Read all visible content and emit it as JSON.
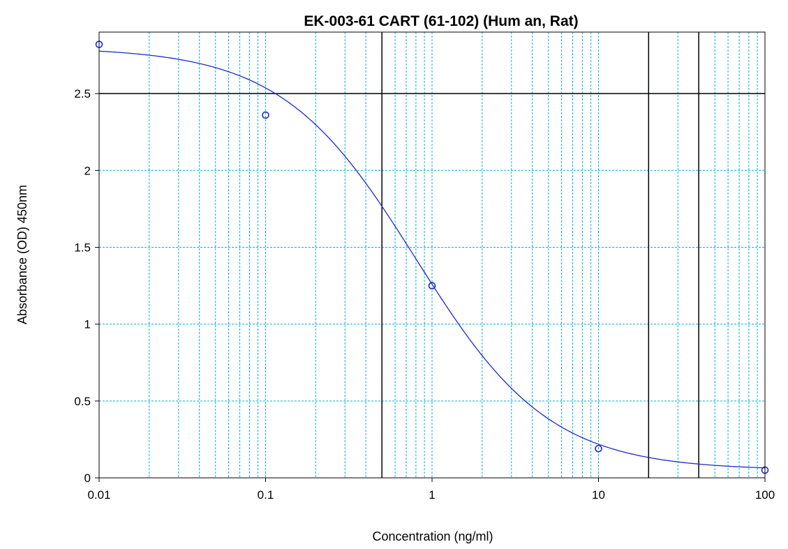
{
  "colors": {
    "background": "#ffffff",
    "frame": "#000000",
    "grid": "#00b4d8",
    "curve": "#1f28c8",
    "points": "#1f28c8",
    "reference_lines": "#000000"
  },
  "chart_data": {
    "type": "scatter",
    "title": "EK-003-61 CART (61-102) (Hum an, Rat)",
    "xlabel": "Concentration (ng/ml)",
    "ylabel": "Absorbance (OD) 450nm",
    "x_scale": "log",
    "xlim": [
      0.01,
      100
    ],
    "ylim": [
      0,
      2.9
    ],
    "grid": true,
    "x_ticks": [
      {
        "value": 0.01,
        "label": "0.01"
      },
      {
        "value": 0.1,
        "label": "0.1"
      },
      {
        "value": 1,
        "label": "1"
      },
      {
        "value": 10,
        "label": "10"
      },
      {
        "value": 100,
        "label": "100"
      }
    ],
    "y_ticks": [
      {
        "value": 0,
        "label": "0"
      },
      {
        "value": 0.5,
        "label": "0.5"
      },
      {
        "value": 1,
        "label": "1"
      },
      {
        "value": 1.5,
        "label": "1.5"
      },
      {
        "value": 2,
        "label": "2"
      },
      {
        "value": 2.5,
        "label": "2.5"
      }
    ],
    "series": [
      {
        "kind": "points",
        "x": [
          0.01,
          0.1,
          1,
          10,
          100
        ],
        "y": [
          2.82,
          2.36,
          1.25,
          0.19,
          0.05
        ]
      },
      {
        "kind": "fitted_curve",
        "model": "4PL",
        "params": {
          "A": 2.8,
          "D": 0.05,
          "C": 0.8,
          "B": 1.08
        }
      }
    ],
    "reference_lines": {
      "horizontal": [
        2.5
      ],
      "vertical": [
        0.5,
        20,
        40
      ]
    }
  }
}
